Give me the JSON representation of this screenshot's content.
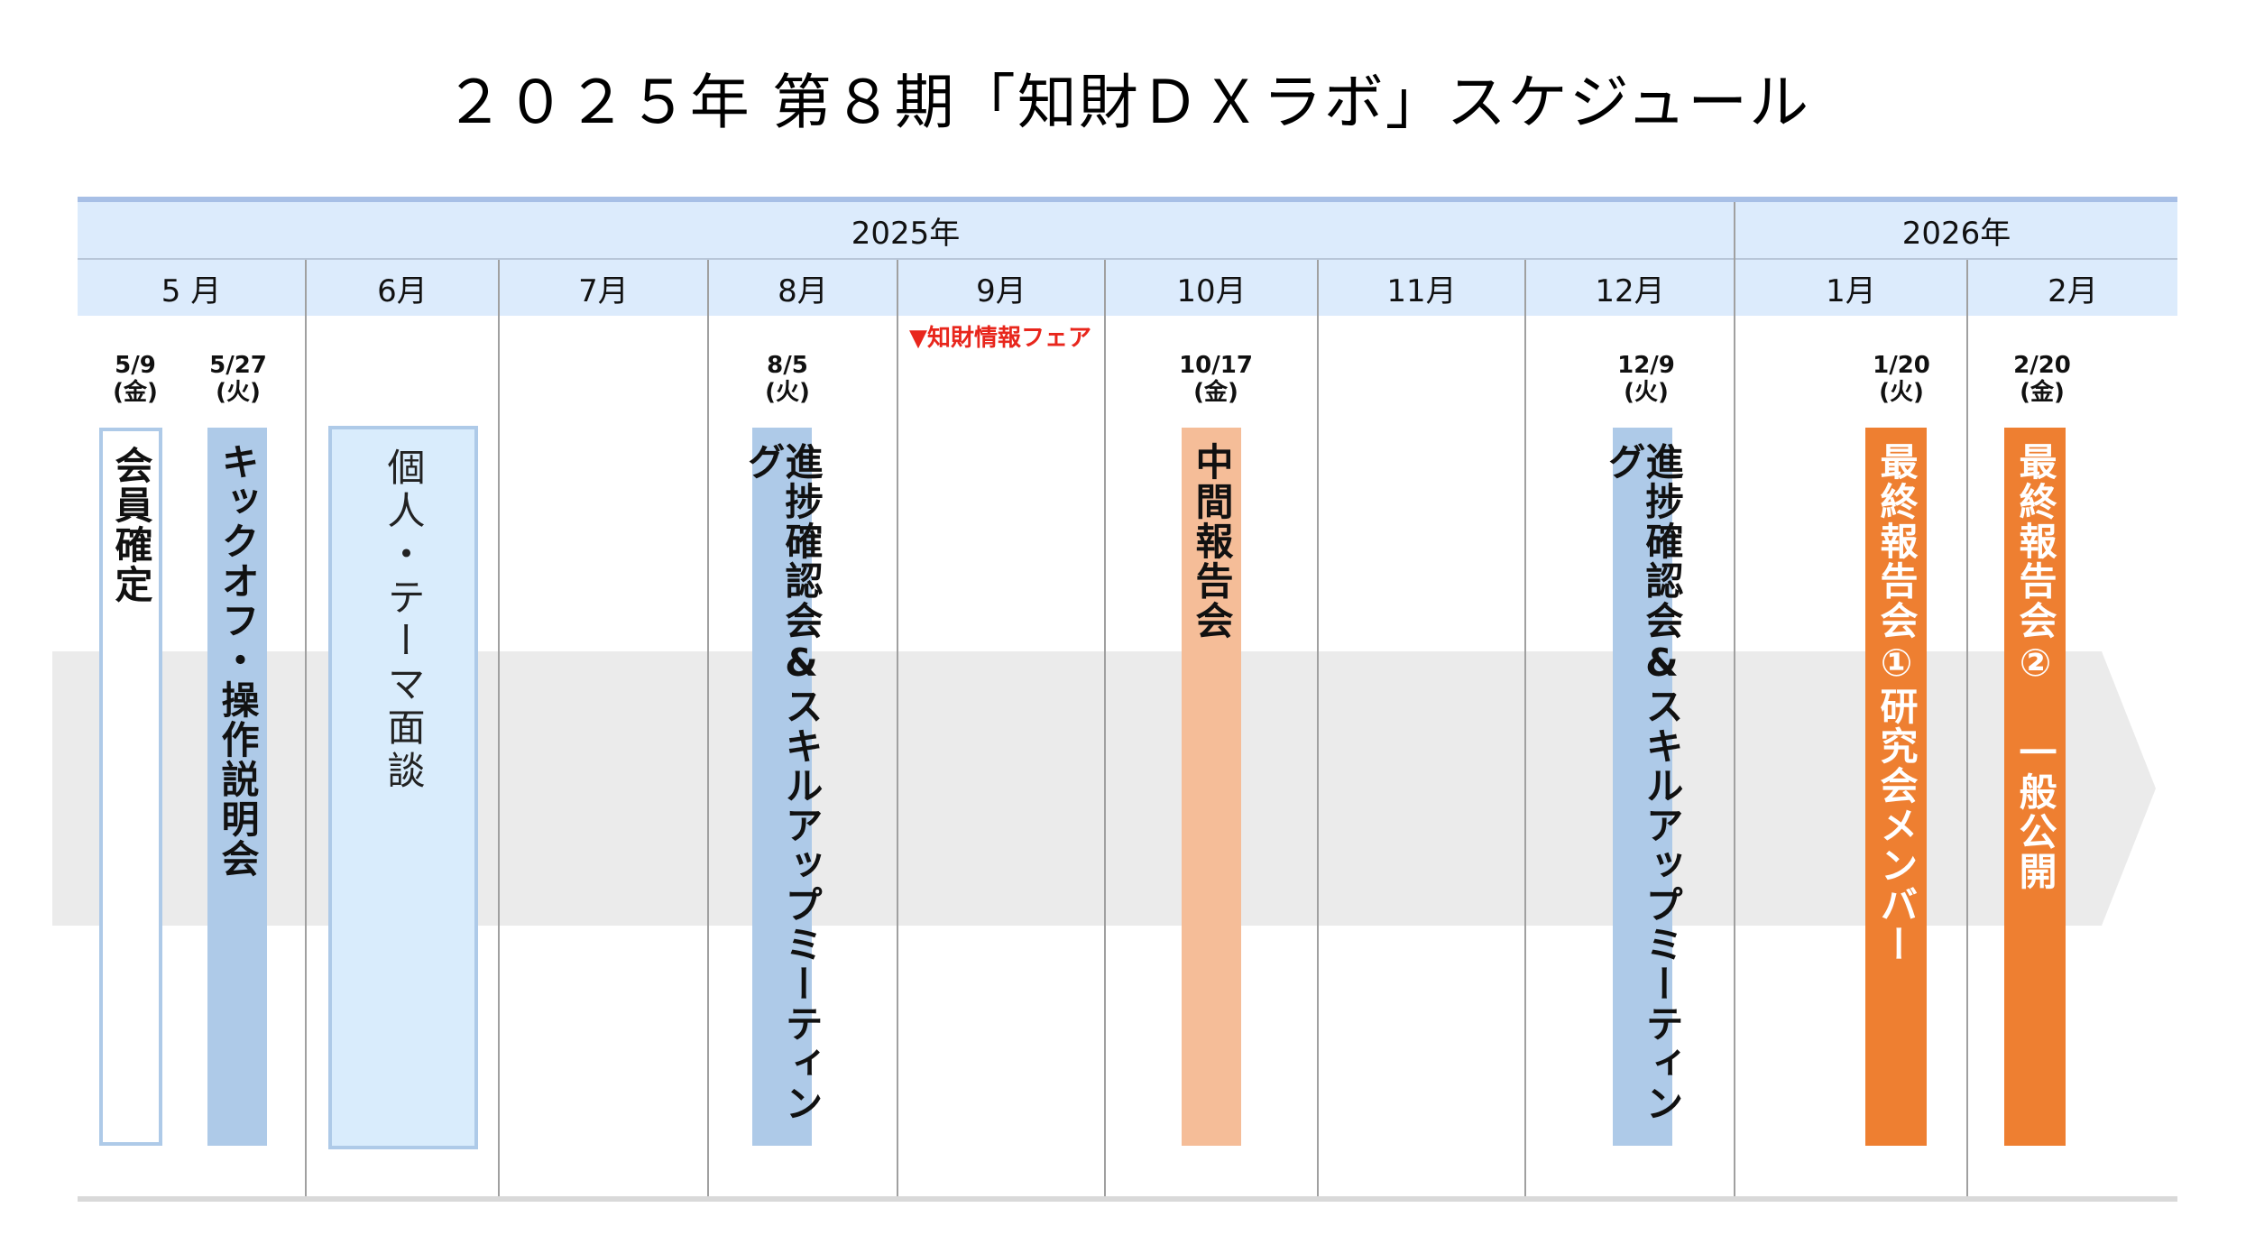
{
  "title": "２０２５年 第８期「知財ＤＸラボ」スケジュール",
  "years": [
    {
      "label": "2025年"
    },
    {
      "label": "2026年"
    }
  ],
  "months": [
    "5 月",
    "6月",
    "7月",
    "8月",
    "9月",
    "10月",
    "11月",
    "12月",
    "1月",
    "2月"
  ],
  "fair_note": "▼知財情報フェア",
  "events": [
    {
      "date": "5/9",
      "dow": "(金)",
      "label": "会員確定"
    },
    {
      "date": "5/27",
      "dow": "(火)",
      "label": "キックオフ・操作説明会"
    },
    {
      "date": "",
      "dow": "",
      "label": "個人・テーマ面談"
    },
    {
      "date": "8/5",
      "dow": "(火)",
      "label": "進捗確認会&スキルアップミーティング"
    },
    {
      "date": "10/17",
      "dow": "(金)",
      "label": "中間報告会"
    },
    {
      "date": "12/9",
      "dow": "(火)",
      "label": "進捗確認会&スキルアップミーティング"
    },
    {
      "date": "1/20",
      "dow": "(火)",
      "label": "最終報告会①研究会メンバー"
    },
    {
      "date": "2/20",
      "dow": "(金)",
      "label": "最終報告会② 一般公開"
    }
  ],
  "colors": {
    "header_bg": "#dcebfc",
    "header_topline": "#a7bfe6",
    "kickoff_blue": "#aecae8",
    "interview_blue": "#d9ecfc",
    "midterm_peach": "#f5bd98",
    "final_orange": "#ee7f31",
    "fair_red": "#e8261c",
    "timeline_arrow_gray": "#ebebeb"
  }
}
